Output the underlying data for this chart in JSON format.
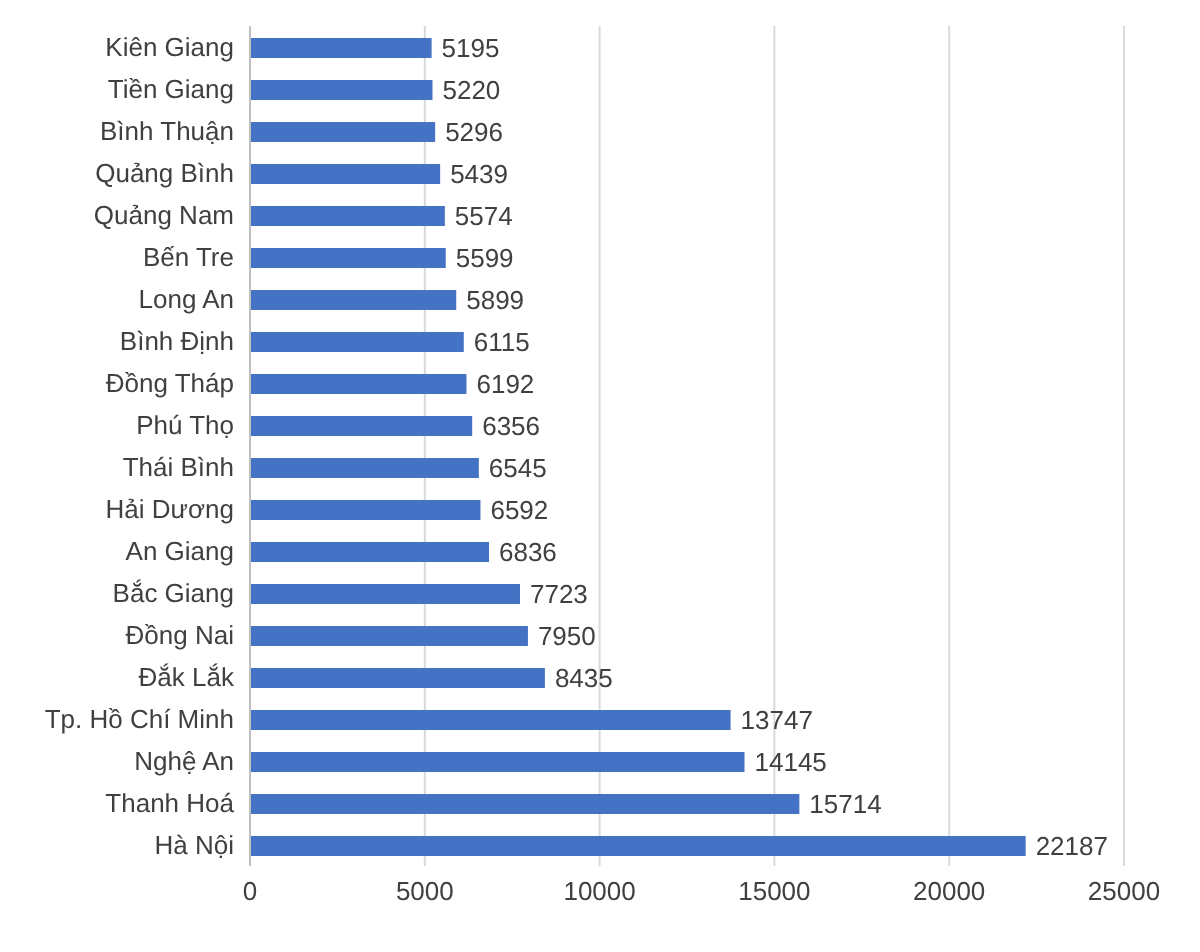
{
  "chart_data": {
    "type": "bar",
    "orientation": "horizontal",
    "categories": [
      "Kiên Giang",
      "Tiền Giang",
      "Bình Thuận",
      "Quảng Bình",
      "Quảng Nam",
      "Bến Tre",
      "Long An",
      "Bình Định",
      "Đồng Tháp",
      "Phú Thọ",
      "Thái Bình",
      "Hải Dương",
      "An Giang",
      "Bắc Giang",
      "Đồng Nai",
      "Đắk Lắk",
      "Tp. Hồ Chí Minh",
      "Nghệ An",
      "Thanh Hoá",
      "Hà Nội"
    ],
    "values": [
      5195,
      5220,
      5296,
      5439,
      5574,
      5599,
      5899,
      6115,
      6192,
      6356,
      6545,
      6592,
      6836,
      7723,
      7950,
      8435,
      13747,
      14145,
      15714,
      22187
    ],
    "color": "#4472c4",
    "xlim": [
      0,
      25000
    ],
    "xticks": [
      0,
      5000,
      10000,
      15000,
      20000,
      25000
    ],
    "grid": "x",
    "data_labels": true
  }
}
